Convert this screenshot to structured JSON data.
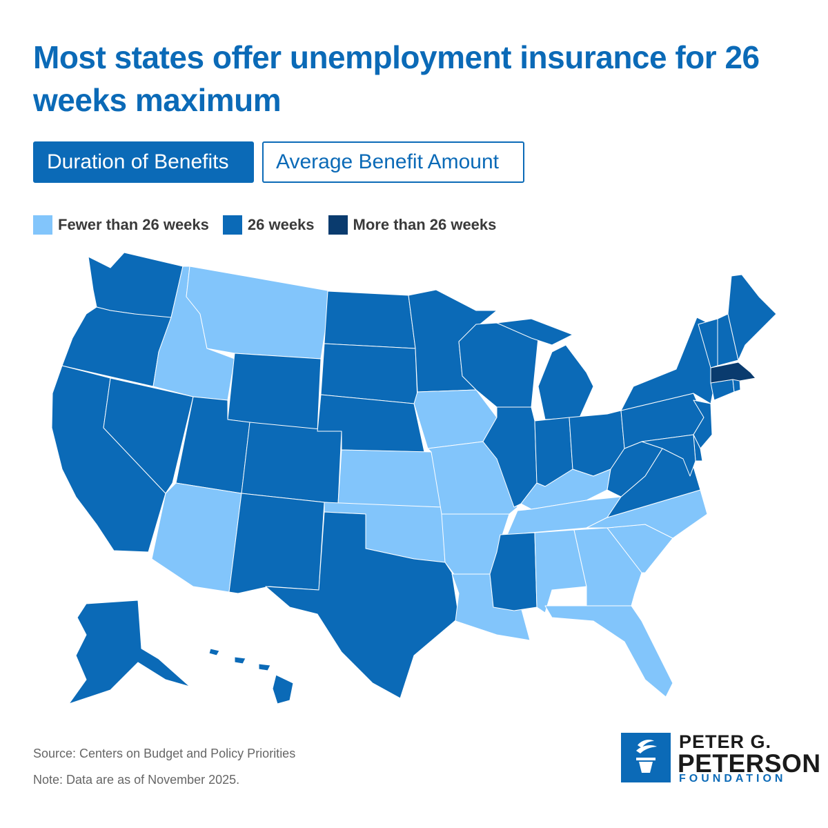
{
  "title": "Most states offer unemployment insurance for 26 weeks maximum",
  "tabs": {
    "active_label": "Duration of Benefits",
    "inactive_label": "Average Benefit Amount"
  },
  "legend": [
    {
      "label": "Fewer than 26 weeks",
      "color": "#82c5fb"
    },
    {
      "label": "26 weeks",
      "color": "#0b6ab7"
    },
    {
      "label": "More than 26 weeks",
      "color": "#0a3b6e"
    }
  ],
  "map_data": {
    "categories": {
      "fewer": "Fewer than 26 weeks",
      "standard": "26 weeks",
      "more": "More than 26 weeks"
    },
    "states": {
      "WA": "standard",
      "OR": "standard",
      "CA": "standard",
      "NV": "standard",
      "ID": "fewer",
      "MT": "fewer",
      "WY": "standard",
      "UT": "standard",
      "AZ": "fewer",
      "CO": "standard",
      "NM": "standard",
      "ND": "standard",
      "SD": "standard",
      "NE": "standard",
      "KS": "fewer",
      "OK": "fewer",
      "TX": "standard",
      "MN": "standard",
      "IA": "fewer",
      "MO": "fewer",
      "AR": "fewer",
      "LA": "fewer",
      "WI": "standard",
      "IL": "standard",
      "MI": "standard",
      "IN": "standard",
      "OH": "standard",
      "KY": "fewer",
      "TN": "fewer",
      "MS": "standard",
      "AL": "fewer",
      "GA": "fewer",
      "FL": "fewer",
      "SC": "fewer",
      "NC": "fewer",
      "VA": "standard",
      "WV": "standard",
      "PA": "standard",
      "NY": "standard",
      "NJ": "standard",
      "DE": "standard",
      "MD": "standard",
      "CT": "standard",
      "RI": "standard",
      "MA": "more",
      "VT": "standard",
      "NH": "standard",
      "ME": "standard",
      "AK": "standard",
      "HI": "standard"
    }
  },
  "footer": {
    "source": "Source: Centers on Budget and Policy Priorities",
    "note": "Note: Data are as of November 2025."
  },
  "logo": {
    "line1": "PETER G.",
    "line2": "PETERSON",
    "line3": "FOUNDATION"
  }
}
